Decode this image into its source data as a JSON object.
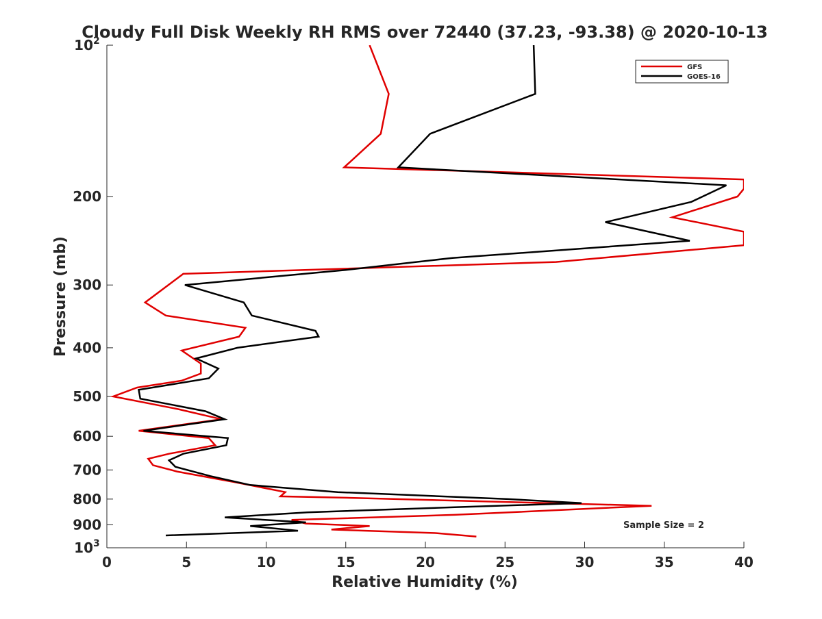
{
  "chart_data": {
    "type": "line",
    "title": "Cloudy Full Disk Weekly RH RMS over 72440 (37.23, -93.38) @ 2020-10-13",
    "xlabel": "Relative Humidity (%)",
    "ylabel": "Pressure (mb)",
    "xlim": [
      0,
      40
    ],
    "ylim": [
      100,
      1000
    ],
    "y_scale": "log",
    "y_reversed": true,
    "grid": false,
    "x_ticks": [
      0,
      5,
      10,
      15,
      20,
      25,
      30,
      35,
      40
    ],
    "x_tick_labels": [
      "0",
      "5",
      "10",
      "15",
      "20",
      "25",
      "30",
      "35",
      "40"
    ],
    "y_ticks": [
      100,
      200,
      300,
      400,
      500,
      600,
      700,
      800,
      900,
      1000
    ],
    "y_tick_labels": [
      "10^2",
      "200",
      "300",
      "400",
      "500",
      "600",
      "700",
      "800",
      "900",
      "10^3"
    ],
    "legend_position": "top-right",
    "annotation": "Sample Size = 2",
    "series": [
      {
        "name": "GFS",
        "color": "#e00000",
        "points": [
          [
            16.5,
            100
          ],
          [
            17.7,
            125
          ],
          [
            17.2,
            150
          ],
          [
            14.9,
            175
          ],
          [
            40.0,
            185
          ],
          [
            40.0,
            193
          ],
          [
            39.6,
            200
          ],
          [
            35.5,
            220
          ],
          [
            40.0,
            235
          ],
          [
            40.0,
            250
          ],
          [
            28.2,
            270
          ],
          [
            4.8,
            285
          ],
          [
            2.4,
            325
          ],
          [
            3.7,
            345
          ],
          [
            8.7,
            365
          ],
          [
            8.3,
            380
          ],
          [
            4.7,
            405
          ],
          [
            5.9,
            430
          ],
          [
            5.9,
            450
          ],
          [
            4.7,
            465
          ],
          [
            1.9,
            480
          ],
          [
            0.4,
            500
          ],
          [
            4.5,
            530
          ],
          [
            7.2,
            555
          ],
          [
            2.0,
            585
          ],
          [
            6.4,
            605
          ],
          [
            6.8,
            625
          ],
          [
            3.9,
            650
          ],
          [
            2.6,
            665
          ],
          [
            2.9,
            685
          ],
          [
            4.4,
            705
          ],
          [
            8.0,
            740
          ],
          [
            11.2,
            775
          ],
          [
            10.9,
            790
          ],
          [
            15.0,
            795
          ],
          [
            34.2,
            825
          ],
          [
            21.8,
            860
          ],
          [
            11.6,
            880
          ],
          [
            12.5,
            895
          ],
          [
            16.5,
            905
          ],
          [
            14.1,
            920
          ],
          [
            20.7,
            935
          ],
          [
            23.2,
            950
          ]
        ]
      },
      {
        "name": "GOES-16",
        "color": "#000000",
        "points": [
          [
            26.8,
            100
          ],
          [
            26.9,
            125
          ],
          [
            20.3,
            150
          ],
          [
            18.3,
            175
          ],
          [
            38.9,
            190
          ],
          [
            36.7,
            205
          ],
          [
            31.3,
            225
          ],
          [
            36.6,
            245
          ],
          [
            21.7,
            265
          ],
          [
            15.0,
            280
          ],
          [
            4.9,
            300
          ],
          [
            8.6,
            325
          ],
          [
            9.1,
            345
          ],
          [
            13.1,
            370
          ],
          [
            13.3,
            380
          ],
          [
            8.2,
            400
          ],
          [
            5.6,
            420
          ],
          [
            7.0,
            440
          ],
          [
            6.4,
            460
          ],
          [
            2.0,
            485
          ],
          [
            2.1,
            505
          ],
          [
            6.2,
            535
          ],
          [
            7.4,
            555
          ],
          [
            2.3,
            585
          ],
          [
            7.6,
            605
          ],
          [
            7.5,
            625
          ],
          [
            4.8,
            650
          ],
          [
            3.9,
            670
          ],
          [
            4.3,
            690
          ],
          [
            6.5,
            720
          ],
          [
            9.0,
            750
          ],
          [
            14.5,
            775
          ],
          [
            25.2,
            800
          ],
          [
            29.8,
            815
          ],
          [
            22.0,
            830
          ],
          [
            12.6,
            850
          ],
          [
            7.4,
            870
          ],
          [
            12.5,
            890
          ],
          [
            9.0,
            905
          ],
          [
            12.0,
            925
          ],
          [
            3.7,
            945
          ]
        ]
      }
    ]
  }
}
